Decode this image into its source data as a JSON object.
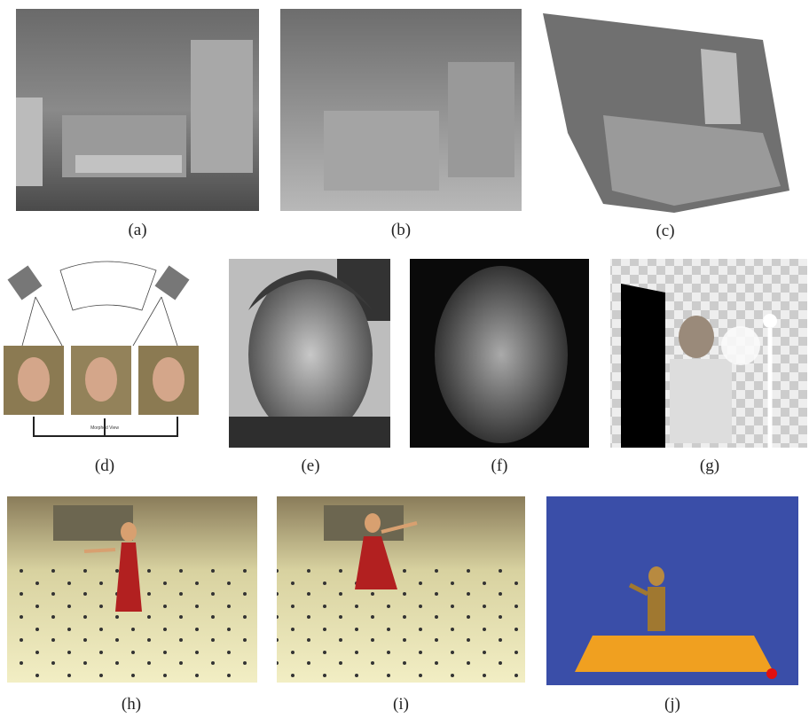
{
  "panels": [
    {
      "caption": "(a)"
    },
    {
      "caption": "(b)"
    },
    {
      "caption": "(c)"
    },
    {
      "caption": "(d)"
    },
    {
      "caption": "(e)"
    },
    {
      "caption": "(f)"
    },
    {
      "caption": "(g)"
    },
    {
      "caption": "(h)"
    },
    {
      "caption": "(i)"
    },
    {
      "caption": "(j)"
    }
  ],
  "morph_label": "Morphed View"
}
